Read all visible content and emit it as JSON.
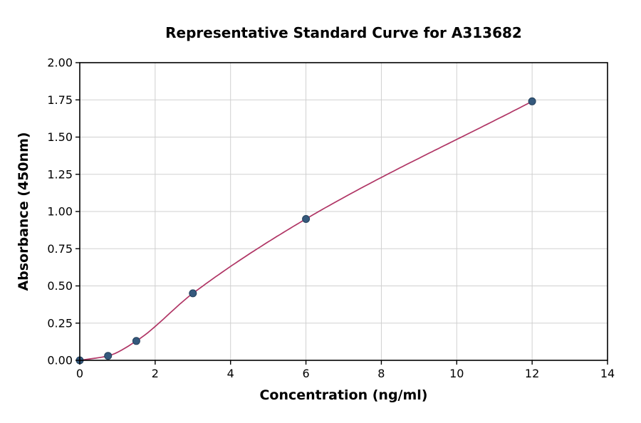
{
  "chart_data": {
    "type": "scatter",
    "title": "Representative Standard Curve for A313682",
    "xlabel": "Concentration (ng/ml)",
    "ylabel": "Absorbance (450nm)",
    "xlim": [
      0,
      14
    ],
    "ylim": [
      0,
      2
    ],
    "grid": true,
    "legend": "none",
    "xticks": {
      "values": [
        0,
        2,
        4,
        6,
        8,
        10,
        12,
        14
      ],
      "labels": [
        "0",
        "2",
        "4",
        "6",
        "8",
        "10",
        "12",
        "14"
      ]
    },
    "yticks": {
      "values": [
        0,
        0.25,
        0.5,
        0.75,
        1.0,
        1.25,
        1.5,
        1.75,
        2.0
      ],
      "labels": [
        "0.00",
        "0.25",
        "0.50",
        "0.75",
        "1.00",
        "1.25",
        "1.50",
        "1.75",
        "2.00"
      ]
    },
    "points": [
      [
        0,
        0.0
      ],
      [
        0.75,
        0.03
      ],
      [
        1.5,
        0.13
      ],
      [
        3,
        0.45
      ],
      [
        6,
        0.95
      ],
      [
        12,
        1.74
      ]
    ],
    "fit_curve": true,
    "colors": {
      "marker": "#35597d",
      "marker_edge": "#24415c",
      "line": "#b03565",
      "grid": "#d0d0d0",
      "axis": "#000000"
    }
  }
}
